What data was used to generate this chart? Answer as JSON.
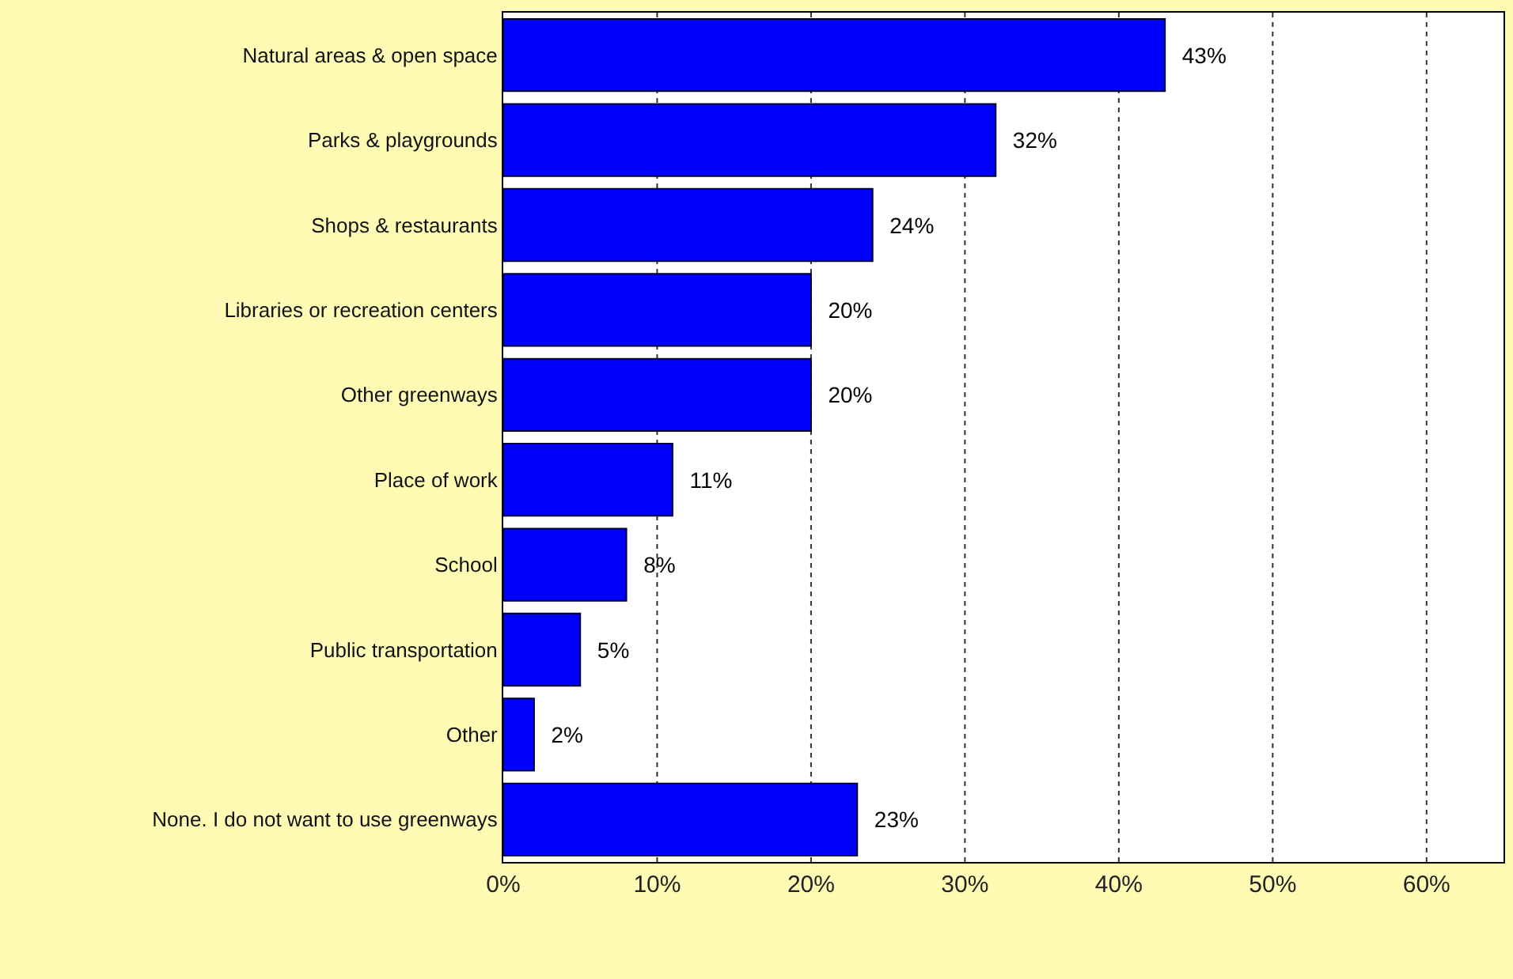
{
  "chart_data": {
    "type": "bar",
    "orientation": "horizontal",
    "categories": [
      "Natural areas & open space",
      "Parks & playgrounds",
      "Shops & restaurants",
      "Libraries or recreation centers",
      "Other greenways",
      "Place of work",
      "School",
      "Public transportation",
      "Other",
      "None. I do not want to use greenways"
    ],
    "values": [
      43,
      32,
      24,
      20,
      20,
      11,
      8,
      5,
      2,
      23
    ],
    "value_labels": [
      "43%",
      "32%",
      "24%",
      "20%",
      "20%",
      "11%",
      "8%",
      "5%",
      "2%",
      "23%"
    ],
    "color": "#0000ff",
    "xlim": [
      0,
      65
    ],
    "xticks": [
      {
        "value": 0,
        "label": "0%"
      },
      {
        "value": 10,
        "label": "10%"
      },
      {
        "value": 20,
        "label": "20%"
      },
      {
        "value": 30,
        "label": "30%"
      },
      {
        "value": 40,
        "label": "40%"
      },
      {
        "value": 50,
        "label": "50%"
      },
      {
        "value": 60,
        "label": "60%"
      }
    ],
    "grid": "x"
  }
}
